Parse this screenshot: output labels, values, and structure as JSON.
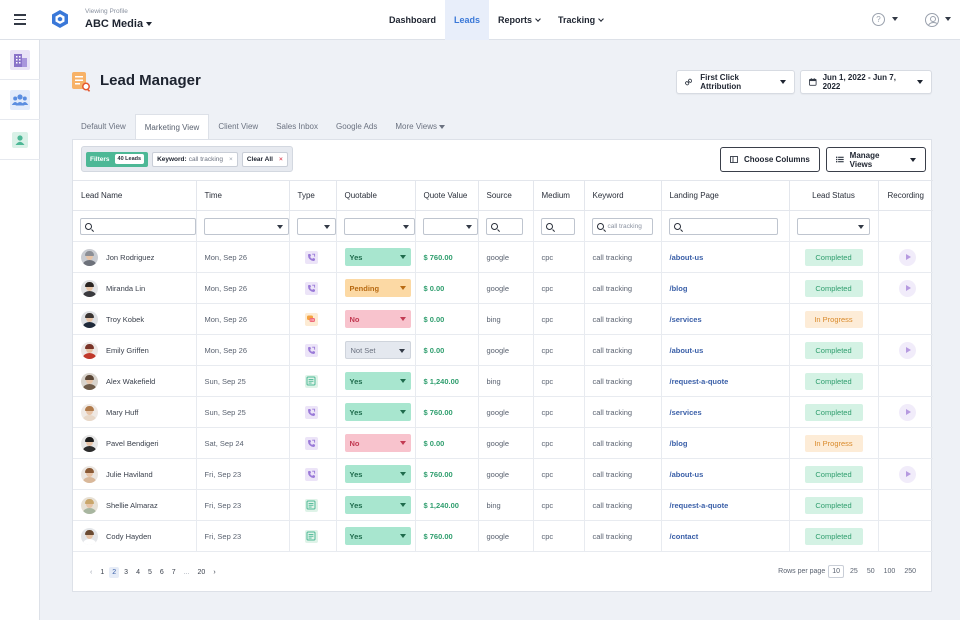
{
  "header": {
    "profile_label": "Viewing Profile",
    "profile_name": "ABC Media",
    "nav": [
      {
        "label": "Dashboard",
        "dropdown": false,
        "active": false
      },
      {
        "label": "Leads",
        "dropdown": false,
        "active": true
      },
      {
        "label": "Reports",
        "dropdown": true,
        "active": false
      },
      {
        "label": "Tracking",
        "dropdown": true,
        "active": false
      }
    ],
    "help_glyph": "?"
  },
  "sidebar": {
    "items": [
      {
        "icon": "buildings-icon",
        "color": "#8a73c9"
      },
      {
        "icon": "team-icon",
        "color": "#5b8ee0"
      },
      {
        "icon": "contact-icon",
        "color": "#4db896"
      }
    ]
  },
  "page": {
    "title": "Lead Manager",
    "attribution_label": "First Click Attribution",
    "date_range": "Jun 1, 2022 - Jun 7, 2022"
  },
  "tabs": [
    {
      "label": "Default View",
      "active": false
    },
    {
      "label": "Marketing View",
      "active": true
    },
    {
      "label": "Client View",
      "active": false
    },
    {
      "label": "Sales Inbox",
      "active": false
    },
    {
      "label": "Google Ads",
      "active": false
    },
    {
      "label": "More Views",
      "active": false,
      "dropdown": true
    }
  ],
  "filters": {
    "label": "Filters",
    "count": "40 Leads",
    "keyword_key": "Keyword:",
    "keyword_value": "call tracking",
    "remove_glyph": "×",
    "clear_label": "Clear All"
  },
  "toolbar": {
    "choose_columns": "Choose Columns",
    "manage_views": "Manage Views"
  },
  "table": {
    "columns": [
      "Lead Name",
      "Time",
      "Type",
      "Quotable",
      "Quote Value",
      "Source",
      "Medium",
      "Keyword",
      "Landing Page",
      "Lead Status",
      "Recording"
    ],
    "keyword_filter_value": "call tracking",
    "rows": [
      {
        "name": "Jon Rodriguez",
        "time": "Mon, Sep 26",
        "type": "call",
        "quotable": "Yes",
        "quote": "$ 760.00",
        "source": "google",
        "medium": "cpc",
        "keyword": "call tracking",
        "landing": "/about-us",
        "status": "Completed",
        "recording": true,
        "avatar_bg": "#c9ccd2",
        "hair": "#8c8f96",
        "shirt": "#6d717a"
      },
      {
        "name": "Miranda Lin",
        "time": "Mon, Sep 26",
        "type": "call",
        "quotable": "Pending",
        "quote": "$ 0.00",
        "source": "google",
        "medium": "cpc",
        "keyword": "call tracking",
        "landing": "/blog",
        "status": "Completed",
        "recording": true,
        "avatar_bg": "#e3e4e6",
        "hair": "#2b2522",
        "shirt": "#3a3a3e"
      },
      {
        "name": "Troy Kobek",
        "time": "Mon, Sep 26",
        "type": "chat",
        "quotable": "No",
        "quote": "$ 0.00",
        "source": "bing",
        "medium": "cpc",
        "keyword": "call tracking",
        "landing": "/services",
        "status": "In Progress",
        "recording": false,
        "avatar_bg": "#dfe1e4",
        "hair": "#3b3532",
        "shirt": "#1f2a3a"
      },
      {
        "name": "Emily Griffen",
        "time": "Mon, Sep 26",
        "type": "call",
        "quotable": "Not Set",
        "quote": "$ 0.00",
        "source": "google",
        "medium": "cpc",
        "keyword": "call tracking",
        "landing": "/about-us",
        "status": "Completed",
        "recording": true,
        "avatar_bg": "#ece8e6",
        "hair": "#7a3428",
        "shirt": "#c0392b"
      },
      {
        "name": "Alex Wakefield",
        "time": "Sun, Sep 25",
        "type": "form",
        "quotable": "Yes",
        "quote": "$ 1,240.00",
        "source": "bing",
        "medium": "cpc",
        "keyword": "call tracking",
        "landing": "/request-a-quote",
        "status": "Completed",
        "recording": false,
        "avatar_bg": "#d8d3cc",
        "hair": "#5a4636",
        "shirt": "#6d5a48"
      },
      {
        "name": "Mary Huff",
        "time": "Sun, Sep 25",
        "type": "call",
        "quotable": "Yes",
        "quote": "$ 760.00",
        "source": "google",
        "medium": "cpc",
        "keyword": "call tracking",
        "landing": "/services",
        "status": "Completed",
        "recording": true,
        "avatar_bg": "#efe9e4",
        "hair": "#b07a4a",
        "shirt": "#e8d8c8"
      },
      {
        "name": "Pavel Bendigeri",
        "time": "Sat, Sep 24",
        "type": "call",
        "quotable": "No",
        "quote": "$ 0.00",
        "source": "google",
        "medium": "cpc",
        "keyword": "call tracking",
        "landing": "/blog",
        "status": "In Progress",
        "recording": false,
        "avatar_bg": "#e6e6e6",
        "hair": "#1c1c1c",
        "shirt": "#2c2c2c"
      },
      {
        "name": "Julie Haviland",
        "time": "Fri, Sep 23",
        "type": "call",
        "quotable": "Yes",
        "quote": "$ 760.00",
        "source": "google",
        "medium": "cpc",
        "keyword": "call tracking",
        "landing": "/about-us",
        "status": "Completed",
        "recording": true,
        "avatar_bg": "#ebe6e1",
        "hair": "#8a5a36",
        "shirt": "#d9b89a"
      },
      {
        "name": "Shellie Almaraz",
        "time": "Fri, Sep 23",
        "type": "form",
        "quotable": "Yes",
        "quote": "$ 1,240.00",
        "source": "bing",
        "medium": "cpc",
        "keyword": "call tracking",
        "landing": "/request-a-quote",
        "status": "Completed",
        "recording": false,
        "avatar_bg": "#e7e1d6",
        "hair": "#c9a66b",
        "shirt": "#a8b6a0"
      },
      {
        "name": "Cody Hayden",
        "time": "Fri, Sep 23",
        "type": "form",
        "quotable": "Yes",
        "quote": "$ 760.00",
        "source": "google",
        "medium": "cpc",
        "keyword": "call tracking",
        "landing": "/contact",
        "status": "Completed",
        "recording": false,
        "avatar_bg": "#e4e6e9",
        "hair": "#6a4a32",
        "shirt": "#ffffff"
      }
    ]
  },
  "pagination": {
    "prev": "‹",
    "next": "›",
    "pages": [
      "1",
      "2",
      "3",
      "4",
      "5",
      "6",
      "7",
      "...",
      "20"
    ],
    "current": "2",
    "rows_label": "Rows per page",
    "rows_options": [
      "10",
      "25",
      "50",
      "100",
      "250"
    ],
    "rows_current": "10"
  },
  "colors": {
    "accent": "#3a78d8",
    "green": "#4db896",
    "money": "#2f9e6e",
    "link": "#3a5fa8",
    "quotable_yes_bg": "#a8e6cf",
    "quotable_yes_fg": "#1e6b4c",
    "quotable_pending_bg": "#fcd9a4",
    "quotable_pending_fg": "#b86a12",
    "quotable_no_bg": "#f8c3cd",
    "quotable_no_fg": "#c23a52",
    "quotable_notset_bg": "#e4e8ef",
    "quotable_notset_fg": "#6b7280",
    "status_completed_bg": "#d4f2e4",
    "status_completed_fg": "#2f9e6e",
    "status_progress_bg": "#fdecd7",
    "status_progress_fg": "#d98a2b"
  }
}
